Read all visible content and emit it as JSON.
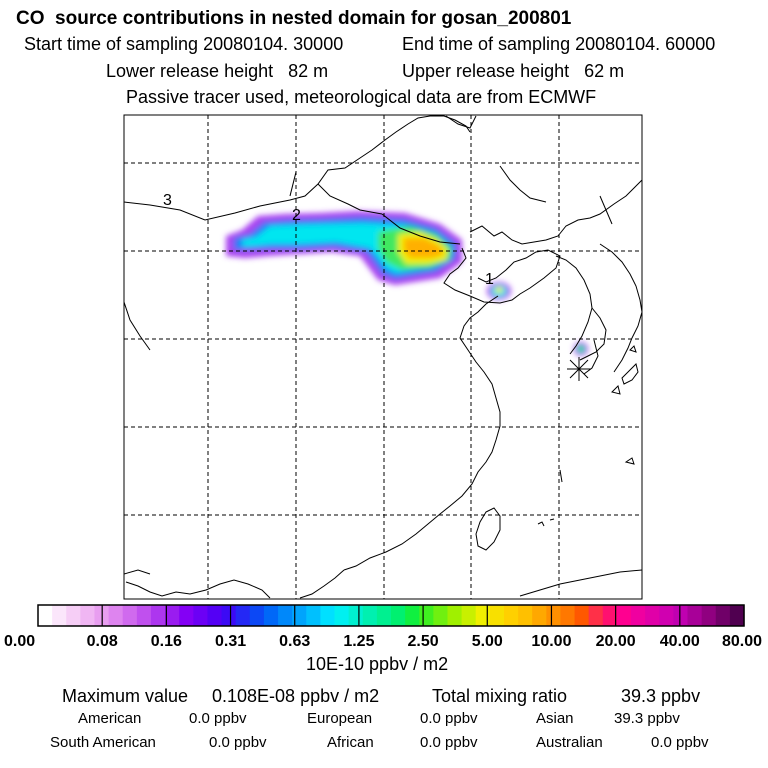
{
  "header": {
    "title": "CO  source contributions in nested domain for gosan_200801",
    "start_time": "Start time of sampling 20080104. 30000",
    "end_time": "End time of sampling 20080104. 60000",
    "lower_height": "Lower release height   82 m",
    "upper_height": "Upper release height   62 m",
    "tracer_note": "Passive tracer used, meteorological data are from ECMWF"
  },
  "map_labels": {
    "label1": "1",
    "label2": "2",
    "label3": "3"
  },
  "chart_data": {
    "type": "heatmap",
    "title": "CO  source contributions in nested domain for gosan_200801",
    "colorbar_unit": "10E-10 ppbv / m2",
    "colorbar_ticks": [
      "0.00",
      "0.08",
      "0.16",
      "0.31",
      "0.63",
      "1.25",
      "2.50",
      "5.00",
      "10.00",
      "20.00",
      "40.00",
      "80.00"
    ],
    "colorbar_colors": [
      "#ffffff",
      "#fbe6fb",
      "#f6cef6",
      "#f0b6f3",
      "#e89ef0",
      "#de84ef",
      "#d06aee",
      "#c050ee",
      "#ad36ef",
      "#9a1cf0",
      "#8400f5",
      "#6c00f5",
      "#5400f5",
      "#3c0af5",
      "#2428f5",
      "#0c48f5",
      "#0068f8",
      "#0088fa",
      "#00a4fc",
      "#00c0fe",
      "#00e0ff",
      "#00f0f0",
      "#00f0d0",
      "#00f0b0",
      "#00f090",
      "#00f070",
      "#10f040",
      "#40f020",
      "#70f010",
      "#a0f000",
      "#c8f000",
      "#f0f000",
      "#f8e000",
      "#ffd000",
      "#ffc000",
      "#ffa800",
      "#ff9000",
      "#ff7800",
      "#ff5800",
      "#ff3048",
      "#ff1070",
      "#ff0090",
      "#f000a0",
      "#e000a8",
      "#d000b0",
      "#c000b0",
      "#a80098",
      "#900080",
      "#700068",
      "#500050"
    ],
    "lines": [
      {
        "label": "Maximum value",
        "value": "0.108E-08 ppbv / m2"
      },
      {
        "label": "Total mixing ratio",
        "value": "39.3 ppbv"
      }
    ],
    "regions": [
      {
        "name": "American",
        "value": "0.0 ppbv"
      },
      {
        "name": "European",
        "value": "0.0 ppbv"
      },
      {
        "name": "Asian",
        "value": "39.3 ppbv"
      },
      {
        "name": "South American",
        "value": "0.0 ppbv"
      },
      {
        "name": "African",
        "value": "0.0 ppbv"
      },
      {
        "name": "Australian",
        "value": "0.0 ppbv"
      }
    ]
  },
  "footer": {
    "max_label": "Maximum value",
    "max_value": "0.108E-08 ppbv / m2",
    "total_label": "Total mixing ratio",
    "total_value": "39.3 ppbv",
    "american_label": "American",
    "american_value": "0.0 ppbv",
    "european_label": "European",
    "european_value": "0.0 ppbv",
    "asian_label": "Asian",
    "asian_value": "39.3 ppbv",
    "south_american_label": "South American",
    "south_american_value": "0.0 ppbv",
    "african_label": "African",
    "african_value": "0.0 ppbv",
    "australian_label": "Australian",
    "australian_value": "0.0 ppbv"
  }
}
